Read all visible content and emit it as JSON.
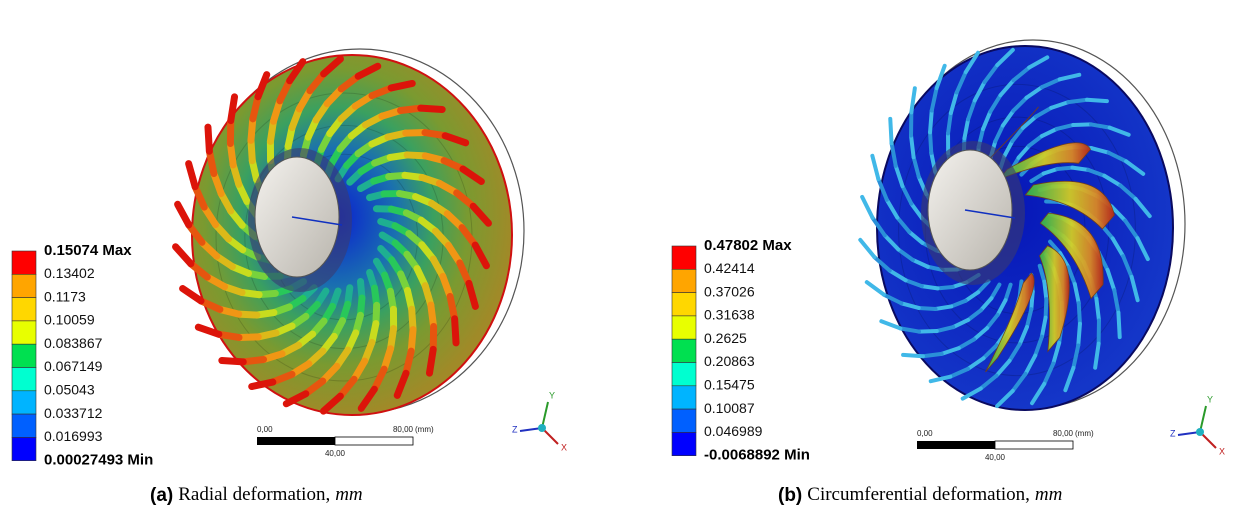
{
  "panels": [
    {
      "legend": {
        "labels": [
          "0.15074 Max",
          "0.13402",
          "0.1173",
          "0.10059",
          "0.083867",
          "0.067149",
          "0.05043",
          "0.033712",
          "0.016993",
          "0.00027493 Min"
        ]
      },
      "scale_bar": {
        "start": "0,00",
        "end": "80,00",
        "unit": "(mm)",
        "middle": "40,00"
      },
      "triad": {
        "x": "X",
        "y": "Y",
        "z": "Z"
      },
      "caption": {
        "tag": "(a)",
        "text": "Radial deformation,",
        "unit": "mm"
      }
    },
    {
      "legend": {
        "labels": [
          "0.47802 Max",
          "0.42414",
          "0.37026",
          "0.31638",
          "0.2625",
          "0.20863",
          "0.15475",
          "0.10087",
          "0.046989",
          "-0.0068892 Min"
        ]
      },
      "scale_bar": {
        "start": "0,00",
        "end": "80,00",
        "unit": "(mm)",
        "middle": "40,00"
      },
      "triad": {
        "x": "X",
        "y": "Y",
        "z": "Z"
      },
      "caption": {
        "tag": "(b)",
        "text": "Circumferential deformation,",
        "unit": "mm"
      }
    }
  ]
}
